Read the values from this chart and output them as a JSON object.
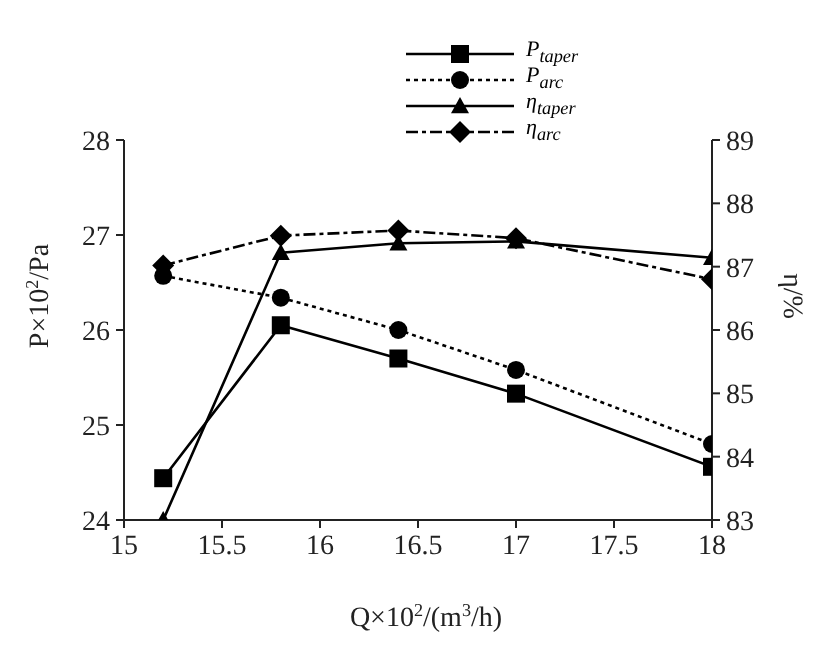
{
  "chart_data": {
    "type": "line",
    "xlabel": "Q×10$^{2}$/(m$^{3}$/h)",
    "ylabel": "P×10$^{2}$/Pa",
    "y2label": "η/%",
    "x": [
      15.2,
      15.8,
      16.4,
      17,
      18
    ],
    "xlim": [
      15,
      18
    ],
    "xticks": [
      15,
      15.5,
      16,
      16.5,
      17,
      17.5,
      18
    ],
    "ylim": [
      24,
      28
    ],
    "yticks": [
      24,
      25,
      26,
      27,
      28
    ],
    "y2lim": [
      83,
      89
    ],
    "y2ticks": [
      83,
      84,
      85,
      86,
      87,
      88,
      89
    ],
    "legend": "top",
    "grid": false,
    "series": [
      {
        "name": "P$_{taper}$",
        "color": "#000000",
        "marker": "square",
        "line_style": "solid",
        "values": [
          24.44,
          26.05,
          25.7,
          25.33,
          24.56
        ]
      },
      {
        "name": "P$_{arc}$",
        "color": "#000000",
        "marker": "circle",
        "line_style": "dotted",
        "values": [
          26.57,
          26.34,
          26.0,
          25.58,
          24.8
        ]
      },
      {
        "name": "η$_{taper}$",
        "color": "#000000",
        "marker": "triangle",
        "line_style": "solid",
        "axis": "y2",
        "values": [
          83,
          87.22,
          87.37,
          87.4,
          87.14
        ]
      },
      {
        "name": "η$_{arc}$",
        "color": "#000000",
        "marker": "diamond",
        "line_style": "dashdot",
        "axis": "y2",
        "values": [
          87.02,
          87.49,
          87.57,
          87.45,
          86.8
        ]
      }
    ]
  }
}
